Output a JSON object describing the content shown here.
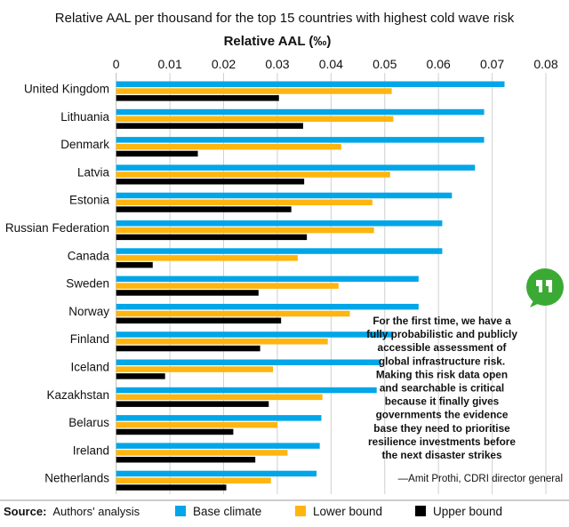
{
  "chart_data": {
    "type": "bar",
    "orientation": "horizontal",
    "title": "Relative AAL per thousand for the top 15 countries with highest cold wave risk",
    "xlabel": "Relative AAL (‰)",
    "xlim": [
      0,
      0.08
    ],
    "xticks": [
      "0",
      "0.01",
      "0.02",
      "0.03",
      "0.04",
      "0.05",
      "0.06",
      "0.07",
      "0.08"
    ],
    "grid": true,
    "categories": [
      "United Kingdom",
      "Lithuania",
      "Denmark",
      "Latvia",
      "Estonia",
      "Russian Federation",
      "Canada",
      "Sweden",
      "Norway",
      "Finland",
      "Iceland",
      "Kazakhstan",
      "Belarus",
      "Ireland",
      "Netherlands"
    ],
    "series": [
      {
        "name": "Base climate",
        "color": "#00a6e8",
        "values": [
          0.0723,
          0.0685,
          0.0685,
          0.0668,
          0.0625,
          0.0607,
          0.0607,
          0.0563,
          0.0563,
          0.0516,
          0.0493,
          0.0485,
          0.0382,
          0.0379,
          0.0373
        ]
      },
      {
        "name": "Lower bound",
        "color": "#ffb50f",
        "values": [
          0.0513,
          0.0516,
          0.0419,
          0.051,
          0.0477,
          0.048,
          0.0338,
          0.0414,
          0.0435,
          0.0394,
          0.0292,
          0.0384,
          0.03,
          0.0319,
          0.0288
        ]
      },
      {
        "name": "Upper bound",
        "color": "#000000",
        "values": [
          0.0303,
          0.0348,
          0.0152,
          0.035,
          0.0326,
          0.0355,
          0.0068,
          0.0265,
          0.0307,
          0.0268,
          0.0091,
          0.0284,
          0.0218,
          0.0259,
          0.0205
        ]
      }
    ],
    "legend": "bottom"
  },
  "source": {
    "label": "Source:",
    "text": "Authors' analysis"
  },
  "quote": {
    "icon": "quote-bubble-icon",
    "color": "#3aaa35",
    "lines": [
      "For the first time, we have a",
      "fully probabilistic and publicly",
      "accessible assessment of",
      "global infrastructure risk.",
      "Making this risk data open",
      "and searchable is critical",
      "because it finally gives",
      "governments the evidence",
      "base they need to prioritise",
      "resilience investments before",
      "the next disaster strikes"
    ],
    "attribution": "—Amit Prothi, CDRI director general"
  }
}
